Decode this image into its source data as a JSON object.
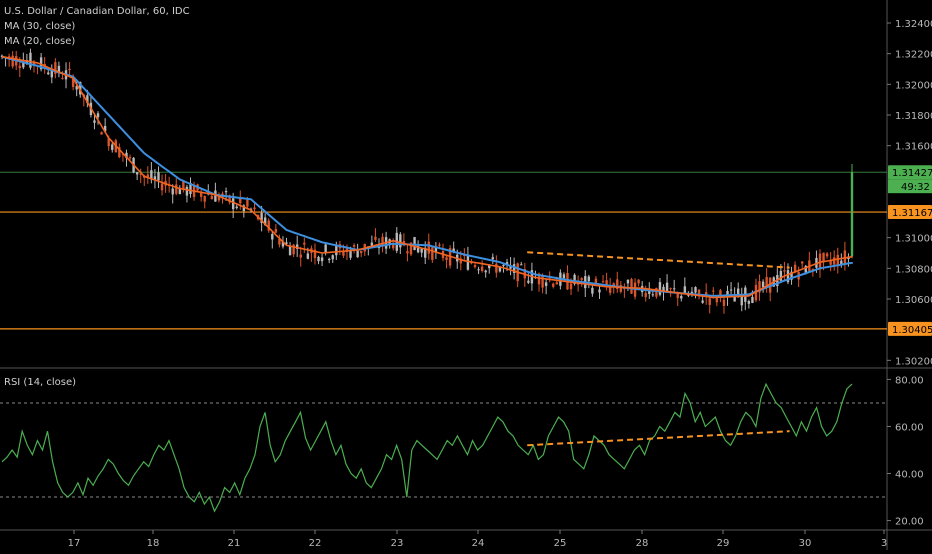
{
  "legend": {
    "main_title": "U.S. Dollar / Canadian Dollar, 60, IDC",
    "ma30": "MA (30, close)",
    "ma20": "MA (20, close)",
    "rsi": "RSI (14, close)"
  },
  "colors": {
    "background": "#000000",
    "candle": "#b9b9b9",
    "ma30": "#3d8fe0",
    "ma20": "#f26522",
    "support_resistance": "#f7931e",
    "rsi_line": "#4caf50",
    "price_tag": "#4caf50",
    "level_tag": "#f7931e",
    "trendline": "#f7931e"
  },
  "chart_data": [
    {
      "type": "candlestick",
      "title": "U.S. Dollar / Canadian Dollar, 60, IDC",
      "x_ticks": [
        "17",
        "18",
        "21",
        "22",
        "23",
        "24",
        "25",
        "28",
        "29",
        "30",
        "3"
      ],
      "y_ticks": [
        "1.32400",
        "1.32200",
        "1.32000",
        "1.31800",
        "1.31600",
        "1.31000",
        "1.30800",
        "1.30600",
        "1.30200"
      ],
      "ylim": [
        1.302,
        1.325
      ],
      "series": [
        {
          "name": "MA (30, close)",
          "color": "#3d8fe0",
          "x": [
            0,
            10,
            20,
            30,
            40,
            50,
            60,
            70,
            80,
            90,
            100,
            110,
            120,
            130,
            140,
            150,
            160,
            170,
            180,
            190,
            200,
            210,
            220,
            230,
            240
          ],
          "y": [
            1.3218,
            1.3212,
            1.3205,
            1.318,
            1.3155,
            1.3138,
            1.3128,
            1.3125,
            1.3105,
            1.3097,
            1.3092,
            1.3096,
            1.3095,
            1.3089,
            1.3084,
            1.3076,
            1.3072,
            1.3069,
            1.3066,
            1.3064,
            1.3062,
            1.3063,
            1.3072,
            1.308,
            1.3084
          ]
        },
        {
          "name": "MA (20, close)",
          "color": "#f26522",
          "x": [
            0,
            10,
            20,
            30,
            40,
            50,
            60,
            70,
            80,
            90,
            100,
            110,
            120,
            130,
            140,
            150,
            160,
            170,
            180,
            190,
            200,
            210,
            220,
            230,
            240
          ],
          "y": [
            1.3218,
            1.3214,
            1.3204,
            1.3165,
            1.314,
            1.3132,
            1.3128,
            1.3118,
            1.3095,
            1.309,
            1.3092,
            1.3098,
            1.3092,
            1.3085,
            1.3081,
            1.3074,
            1.3071,
            1.3068,
            1.3067,
            1.3064,
            1.3061,
            1.3062,
            1.3075,
            1.3084,
            1.3088
          ]
        }
      ],
      "horizontal_levels": [
        {
          "label": "1.31167",
          "value": 1.31167,
          "color": "#f7931e"
        },
        {
          "label": "1.30405",
          "value": 1.30405,
          "color": "#f7931e"
        },
        {
          "label": "1.31427",
          "value": 1.31427,
          "color": "#4caf50"
        }
      ],
      "last_price": {
        "value": "1.31427",
        "countdown": "49:32"
      },
      "annotations": [
        {
          "type": "dashed-trendline",
          "from": [
            1.30905,
            24.6
          ],
          "to": [
            1.30805,
            27.8
          ]
        }
      ],
      "grid": false
    },
    {
      "type": "line",
      "title": "RSI (14, close)",
      "x_ticks": [
        "17",
        "18",
        "21",
        "22",
        "23",
        "24",
        "25",
        "28",
        "29",
        "30",
        "3"
      ],
      "y_ticks": [
        "80.00",
        "60.00",
        "40.00",
        "20.00"
      ],
      "ylim": [
        18,
        82
      ],
      "reference_lines": [
        70,
        30
      ],
      "series": [
        {
          "name": "RSI (14, close)",
          "color": "#4caf50",
          "values": [
            45,
            47,
            50,
            47,
            58,
            52,
            48,
            54,
            50,
            58,
            45,
            36,
            32,
            30,
            32,
            36,
            31,
            38,
            35,
            39,
            42,
            46,
            44,
            40,
            37,
            35,
            39,
            42,
            45,
            43,
            48,
            52,
            50,
            54,
            48,
            42,
            34,
            30,
            28,
            32,
            27,
            30,
            24,
            28,
            34,
            32,
            36,
            31,
            38,
            42,
            48,
            60,
            66,
            52,
            45,
            48,
            54,
            58,
            62,
            66,
            55,
            50,
            54,
            58,
            62,
            54,
            48,
            52,
            44,
            40,
            38,
            42,
            36,
            34,
            38,
            42,
            48,
            46,
            52,
            46,
            30,
            50,
            54,
            52,
            50,
            48,
            46,
            50,
            54,
            52,
            56,
            52,
            48,
            54,
            50,
            52,
            56,
            60,
            64,
            62,
            58,
            56,
            52,
            50,
            48,
            52,
            46,
            48,
            56,
            60,
            64,
            62,
            58,
            46,
            44,
            42,
            48,
            56,
            54,
            52,
            48,
            46,
            44,
            42,
            46,
            50,
            52,
            48,
            54,
            56,
            60,
            58,
            62,
            66,
            64,
            74,
            70,
            62,
            66,
            60,
            62,
            64,
            58,
            54,
            52,
            56,
            62,
            66,
            64,
            60,
            72,
            78,
            74,
            70,
            68,
            64,
            60,
            56,
            62,
            58,
            64,
            68,
            60,
            56,
            58,
            62,
            70,
            76,
            78
          ]
        }
      ],
      "annotations": [
        {
          "type": "dashed-trendline",
          "from": [
            52,
            24.6
          ],
          "to": [
            58,
            27.8
          ]
        }
      ],
      "grid": false
    }
  ]
}
